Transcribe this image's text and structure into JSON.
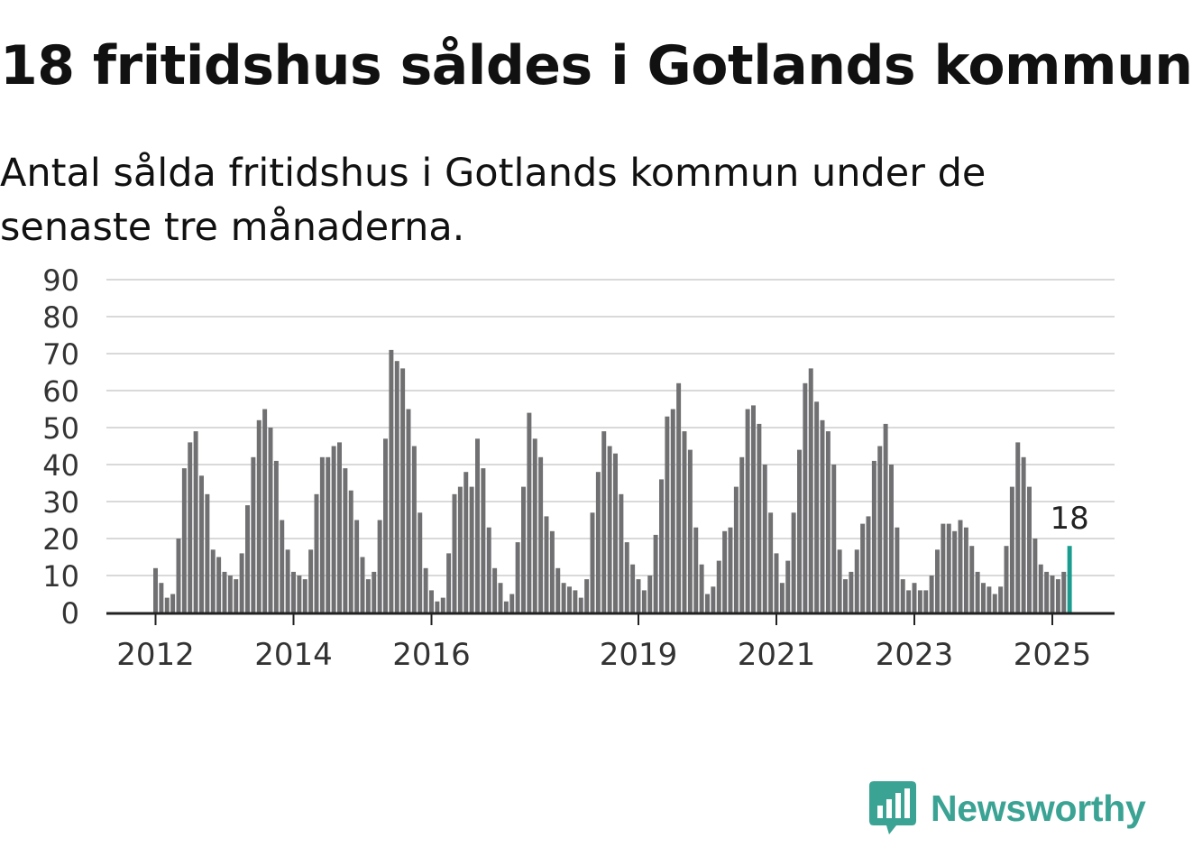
{
  "header": {
    "title": "18 fritidshus såldes i Gotlands kommun",
    "subtitle": "Antal sålda fritidshus i Gotlands kommun under de senaste tre månaderna."
  },
  "branding": {
    "name": "Newsworthy",
    "icon": "newsworthy-chart-bubble-icon"
  },
  "colors": {
    "bar": "#707073",
    "highlight": "#1a9d8f",
    "grid": "#d9d9d9",
    "axis": "#222222",
    "logo": "#3aa394"
  },
  "chart_data": {
    "type": "bar",
    "x_unit": "month",
    "x_start": "2012-01",
    "x_end": "2025-04",
    "values": [
      12,
      8,
      4,
      5,
      20,
      39,
      46,
      49,
      37,
      32,
      17,
      15,
      11,
      10,
      9,
      16,
      29,
      42,
      52,
      55,
      50,
      41,
      25,
      17,
      11,
      10,
      9,
      17,
      32,
      42,
      42,
      45,
      46,
      39,
      33,
      25,
      15,
      9,
      11,
      25,
      47,
      71,
      68,
      66,
      55,
      45,
      27,
      12,
      6,
      3,
      4,
      16,
      32,
      34,
      38,
      34,
      47,
      39,
      23,
      12,
      8,
      3,
      5,
      19,
      34,
      54,
      47,
      42,
      26,
      22,
      12,
      8,
      7,
      6,
      4,
      9,
      27,
      38,
      49,
      45,
      43,
      32,
      19,
      13,
      9,
      6,
      10,
      21,
      36,
      53,
      55,
      62,
      49,
      44,
      23,
      13,
      5,
      7,
      14,
      22,
      23,
      34,
      42,
      55,
      56,
      51,
      40,
      27,
      16,
      8,
      14,
      27,
      44,
      62,
      66,
      57,
      52,
      49,
      40,
      17,
      9,
      11,
      17,
      24,
      26,
      41,
      45,
      51,
      40,
      23,
      9,
      6,
      8,
      6,
      6,
      10,
      17,
      24,
      24,
      22,
      25,
      23,
      18,
      11,
      8,
      7,
      5,
      7,
      18,
      34,
      46,
      42,
      34,
      20,
      13,
      11,
      10,
      9,
      11,
      18
    ],
    "highlight": {
      "x": "2025-04",
      "value": 18,
      "label": "18"
    },
    "x_tick_labels": [
      "2012",
      "2014",
      "2016",
      "2019",
      "2021",
      "2023",
      "2025"
    ],
    "y_tick_labels": [
      "0",
      "10",
      "20",
      "30",
      "40",
      "50",
      "60",
      "70",
      "80",
      "90"
    ],
    "ylim": [
      0,
      90
    ],
    "grid": "horizontal",
    "xlabel": "",
    "ylabel": ""
  }
}
